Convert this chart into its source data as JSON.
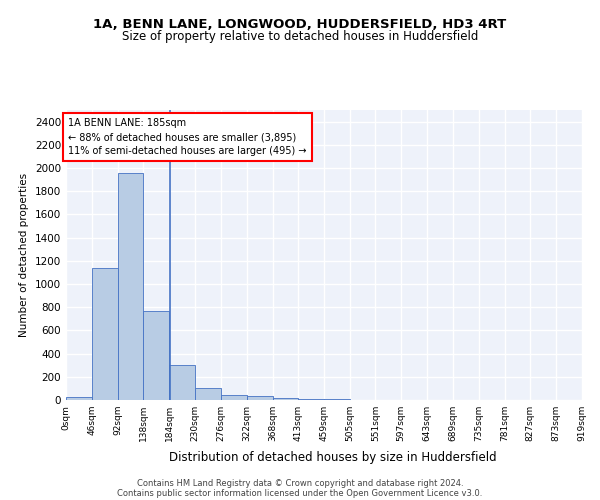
{
  "title1": "1A, BENN LANE, LONGWOOD, HUDDERSFIELD, HD3 4RT",
  "title2": "Size of property relative to detached houses in Huddersfield",
  "xlabel": "Distribution of detached houses by size in Huddersfield",
  "ylabel": "Number of detached properties",
  "footer1": "Contains HM Land Registry data © Crown copyright and database right 2024.",
  "footer2": "Contains public sector information licensed under the Open Government Licence v3.0.",
  "bin_edges": [
    0,
    46,
    92,
    138,
    184,
    230,
    276,
    322,
    368,
    413,
    459,
    505,
    551,
    597,
    643,
    689,
    735,
    781,
    827,
    873,
    919
  ],
  "bar_heights": [
    30,
    1140,
    1960,
    770,
    300,
    100,
    45,
    35,
    20,
    12,
    12,
    0,
    0,
    0,
    0,
    0,
    0,
    0,
    0,
    0
  ],
  "bar_color": "#b8cce4",
  "bar_edge_color": "#4472c4",
  "property_line_x": 185,
  "property_line_color": "#4472c4",
  "annotation_text": "1A BENN LANE: 185sqm\n← 88% of detached houses are smaller (3,895)\n11% of semi-detached houses are larger (495) →",
  "annotation_box_color": "white",
  "annotation_box_edge": "red",
  "ylim": [
    0,
    2500
  ],
  "yticks": [
    0,
    200,
    400,
    600,
    800,
    1000,
    1200,
    1400,
    1600,
    1800,
    2000,
    2200,
    2400
  ],
  "bg_color": "#eef2fa",
  "grid_color": "white",
  "tick_labels": [
    "0sqm",
    "46sqm",
    "92sqm",
    "138sqm",
    "184sqm",
    "230sqm",
    "276sqm",
    "322sqm",
    "368sqm",
    "413sqm",
    "459sqm",
    "505sqm",
    "551sqm",
    "597sqm",
    "643sqm",
    "689sqm",
    "735sqm",
    "781sqm",
    "827sqm",
    "873sqm",
    "919sqm"
  ],
  "title1_fontsize": 9.5,
  "title2_fontsize": 8.5,
  "xlabel_fontsize": 8.5,
  "ylabel_fontsize": 7.5,
  "tick_fontsize": 6.5,
  "ytick_fontsize": 7.5,
  "annot_fontsize": 7.0,
  "footer_fontsize": 6.0
}
